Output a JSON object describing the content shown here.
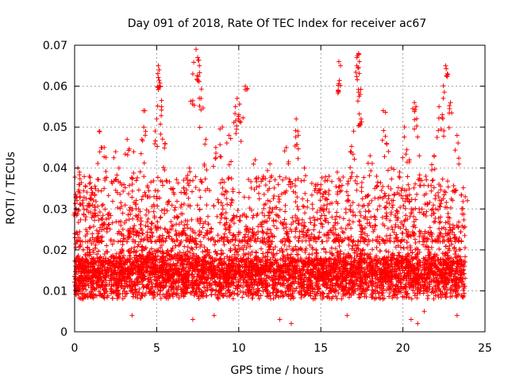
{
  "chart_data": {
    "type": "scatter",
    "title": "Day 091 of 2018, Rate Of TEC Index for receiver ac67",
    "xlabel": "GPS time / hours",
    "ylabel": "ROTI / TECUs",
    "xlim": [
      0,
      25
    ],
    "ylim": [
      0,
      0.07
    ],
    "xticks": [
      0,
      5,
      10,
      15,
      20,
      25
    ],
    "xtick_labels": [
      "0",
      "5",
      "10",
      "15",
      "20",
      "25"
    ],
    "yticks": [
      0,
      0.01,
      0.02,
      0.03,
      0.04,
      0.05,
      0.06,
      0.07
    ],
    "ytick_labels": [
      "0",
      "0.01",
      "0.02",
      "0.03",
      "0.04",
      "0.05",
      "0.06",
      "0.07"
    ],
    "grid": true,
    "marker": "plus",
    "color": "#ff0000",
    "series": [
      {
        "name": "ROTI",
        "data_range_x": [
          0,
          23.8
        ],
        "typical_band": [
          0.005,
          0.025
        ],
        "points": [
          [
            0.1,
            0.033
          ],
          [
            0.2,
            0.04
          ],
          [
            0.3,
            0.039
          ],
          [
            0.5,
            0.015
          ],
          [
            0.6,
            0.013
          ],
          [
            0.9,
            0.038
          ],
          [
            1.0,
            0.035
          ],
          [
            1.1,
            0.034
          ],
          [
            1.5,
            0.049
          ],
          [
            1.8,
            0.045
          ],
          [
            2.1,
            0.029
          ],
          [
            2.5,
            0.044
          ],
          [
            2.7,
            0.04
          ],
          [
            3.0,
            0.036
          ],
          [
            3.2,
            0.047
          ],
          [
            3.6,
            0.044
          ],
          [
            3.9,
            0.03
          ],
          [
            4.1,
            0.047
          ],
          [
            4.2,
            0.054
          ],
          [
            4.6,
            0.025
          ],
          [
            5.0,
            0.052
          ],
          [
            5.1,
            0.065
          ],
          [
            5.15,
            0.064
          ],
          [
            5.2,
            0.06
          ],
          [
            5.3,
            0.055
          ],
          [
            5.5,
            0.046
          ],
          [
            6.0,
            0.035
          ],
          [
            6.5,
            0.031
          ],
          [
            7.0,
            0.04
          ],
          [
            7.2,
            0.063
          ],
          [
            7.4,
            0.069
          ],
          [
            7.5,
            0.067
          ],
          [
            7.6,
            0.065
          ],
          [
            7.7,
            0.057
          ],
          [
            8.0,
            0.047
          ],
          [
            8.6,
            0.045
          ],
          [
            9.0,
            0.05
          ],
          [
            9.4,
            0.048
          ],
          [
            9.8,
            0.055
          ],
          [
            9.9,
            0.057
          ],
          [
            10.0,
            0.053
          ],
          [
            10.4,
            0.06
          ],
          [
            11.0,
            0.042
          ],
          [
            11.5,
            0.038
          ],
          [
            11.9,
            0.041
          ],
          [
            12.4,
            0.036
          ],
          [
            12.9,
            0.045
          ],
          [
            13.5,
            0.052
          ],
          [
            13.6,
            0.049
          ],
          [
            14.0,
            0.04
          ],
          [
            14.7,
            0.036
          ],
          [
            15.3,
            0.034
          ],
          [
            15.5,
            0.038
          ],
          [
            16.0,
            0.039
          ],
          [
            16.1,
            0.066
          ],
          [
            16.2,
            0.065
          ],
          [
            16.8,
            0.044
          ],
          [
            17.0,
            0.049
          ],
          [
            17.2,
            0.067
          ],
          [
            17.3,
            0.068
          ],
          [
            17.35,
            0.066
          ],
          [
            17.4,
            0.058
          ],
          [
            17.45,
            0.052
          ],
          [
            18.0,
            0.043
          ],
          [
            18.4,
            0.038
          ],
          [
            18.8,
            0.054
          ],
          [
            19.0,
            0.046
          ],
          [
            19.3,
            0.04
          ],
          [
            19.8,
            0.039
          ],
          [
            20.1,
            0.05
          ],
          [
            20.4,
            0.042
          ],
          [
            20.7,
            0.056
          ],
          [
            20.8,
            0.055
          ],
          [
            21.0,
            0.043
          ],
          [
            21.4,
            0.038
          ],
          [
            21.9,
            0.043
          ],
          [
            22.2,
            0.055
          ],
          [
            22.4,
            0.053
          ],
          [
            22.6,
            0.065
          ],
          [
            22.7,
            0.063
          ],
          [
            22.9,
            0.056
          ],
          [
            23.3,
            0.048
          ],
          [
            23.8,
            0.033
          ]
        ],
        "low_points": [
          [
            3.5,
            0.004
          ],
          [
            7.2,
            0.003
          ],
          [
            8.5,
            0.004
          ],
          [
            12.5,
            0.003
          ],
          [
            13.2,
            0.002
          ],
          [
            16.6,
            0.004
          ],
          [
            20.5,
            0.003
          ],
          [
            20.9,
            0.002
          ],
          [
            21.3,
            0.005
          ],
          [
            23.3,
            0.004
          ]
        ]
      }
    ]
  }
}
